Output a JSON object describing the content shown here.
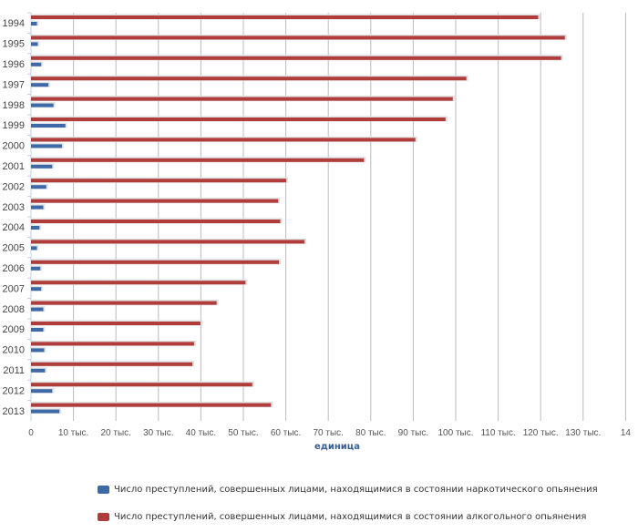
{
  "chart_data": {
    "type": "bar",
    "orientation": "horizontal",
    "categories": [
      "1994",
      "1995",
      "1996",
      "1997",
      "1998",
      "1999",
      "2000",
      "2001",
      "2002",
      "2003",
      "2004",
      "2005",
      "2006",
      "2007",
      "2008",
      "2009",
      "2010",
      "2011",
      "2012",
      "2013"
    ],
    "series": [
      {
        "name": "Число преступлений, совершенных лицами, находящимися в состоянии алкогольного опьянения",
        "color": "#b13c3c",
        "values": [
          119.4,
          125.7,
          124.8,
          102.5,
          99.3,
          97.6,
          90.5,
          78.4,
          60.1,
          58.2,
          58.7,
          64.4,
          58.4,
          50.5,
          43.7,
          39.9,
          38.4,
          38.0,
          52.1,
          56.5
        ]
      },
      {
        "name": "Число преступлений, совершенных лицами, находящимися в состоянии наркотического опьянения",
        "color": "#3d6aa6",
        "values": [
          1.4,
          1.6,
          2.4,
          4.1,
          5.3,
          8.1,
          7.3,
          5.0,
          3.6,
          2.9,
          2.0,
          1.4,
          2.2,
          2.4,
          2.9,
          2.9,
          3.1,
          3.3,
          5.0,
          6.7
        ]
      }
    ],
    "value_unit": "тыс.",
    "xlim": [
      0,
      140
    ],
    "xticks": [
      "0",
      "10 тыс.",
      "20 тыс.",
      "30 тыс.",
      "40 тыс.",
      "50 тыс.",
      "60 тыс.",
      "70 тыс.",
      "80 тыс.",
      "90 тыс.",
      "100 тыс.",
      "110 тыс.",
      "120 тыс.",
      "130 тыс.",
      "14"
    ],
    "xlabel": "единица",
    "grid": true,
    "legend_position": "bottom",
    "legend": [
      {
        "label": "Число преступлений, совершенных лицами, находящимися в состоянии наркотического опьянения",
        "color": "#3d6aa6"
      },
      {
        "label": "Число преступлений, совершенных лицами, находящимися в состоянии алкогольного опьянения",
        "color": "#b13c3c"
      }
    ]
  }
}
